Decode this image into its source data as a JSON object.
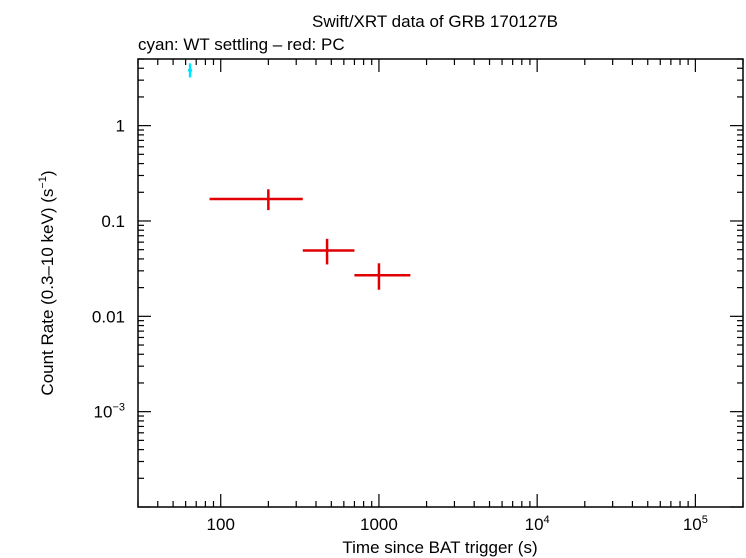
{
  "chart_data": {
    "type": "scatter",
    "title": "Swift/XRT data of GRB 170127B",
    "subtitle": "cyan: WT settling – red: PC",
    "xlabel": "Time since BAT trigger (s)",
    "ylabel_main": "Count Rate (0.3–10 keV) (s",
    "ylabel_sup": "−1",
    "ylabel_close": ")",
    "x_scale": "log",
    "y_scale": "log",
    "xlim": [
      30,
      200000
    ],
    "ylim": [
      0.0001,
      5
    ],
    "x_ticks": [
      {
        "value": 100,
        "base": "100",
        "exp": ""
      },
      {
        "value": 1000,
        "base": "1000",
        "exp": ""
      },
      {
        "value": 10000,
        "base": "10",
        "exp": "4"
      },
      {
        "value": 100000,
        "base": "10",
        "exp": "5"
      }
    ],
    "y_ticks": [
      {
        "value": 1,
        "base": "1",
        "exp": ""
      },
      {
        "value": 0.1,
        "base": "0.1",
        "exp": ""
      },
      {
        "value": 0.01,
        "base": "0.01",
        "exp": ""
      },
      {
        "value": 0.001,
        "base": "10",
        "exp": "−3"
      }
    ],
    "series": [
      {
        "color": "#00e5ff",
        "points": [
          {
            "x": 64,
            "xlo": 62,
            "xhi": 66,
            "y": 3.8,
            "ylo": 3.2,
            "yhi": 4.5
          }
        ]
      },
      {
        "color": "#e00000",
        "points": [
          {
            "x": 200,
            "xlo": 85,
            "xhi": 330,
            "y": 0.17,
            "ylo": 0.13,
            "yhi": 0.215
          },
          {
            "x": 470,
            "xlo": 330,
            "xhi": 700,
            "y": 0.049,
            "ylo": 0.035,
            "yhi": 0.065
          },
          {
            "x": 1000,
            "xlo": 700,
            "xhi": 1580,
            "y": 0.027,
            "ylo": 0.019,
            "yhi": 0.036
          }
        ]
      }
    ]
  }
}
